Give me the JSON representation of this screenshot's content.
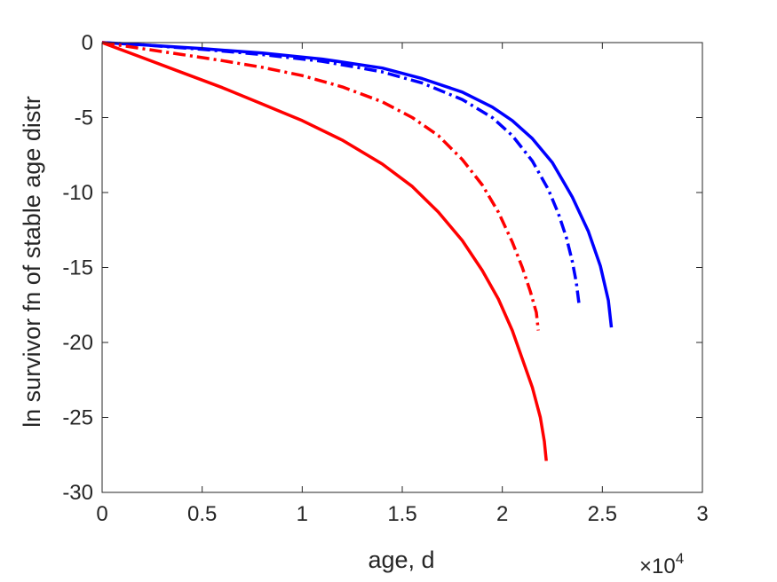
{
  "chart_data": {
    "type": "line",
    "title": "",
    "xlabel": "age, d",
    "ylabel": "ln survivor fn of stable age distr",
    "xlim": [
      0,
      30000
    ],
    "ylim": [
      -30,
      0
    ],
    "x_multiplier": "×10",
    "x_multiplier_exponent": "4",
    "x_ticks": [
      0,
      5000,
      10000,
      15000,
      20000,
      25000,
      30000
    ],
    "x_tick_labels": [
      "0",
      "0.5",
      "1",
      "1.5",
      "2",
      "2.5",
      "3"
    ],
    "y_ticks": [
      0,
      -5,
      -10,
      -15,
      -20,
      -25,
      -30
    ],
    "y_tick_labels": [
      "0",
      "-5",
      "-10",
      "-15",
      "-20",
      "-25",
      "-30"
    ],
    "grid": false,
    "legend": "none",
    "series": [
      {
        "color": "#0000ff",
        "linestyle": "solid",
        "x": [
          0,
          2000,
          5000,
          8000,
          11000,
          14000,
          16000,
          18000,
          19500,
          20500,
          21500,
          22500,
          23500,
          24300,
          24900,
          25300,
          25450
        ],
        "y": [
          0,
          -0.15,
          -0.4,
          -0.7,
          -1.1,
          -1.7,
          -2.4,
          -3.3,
          -4.3,
          -5.2,
          -6.4,
          -8.0,
          -10.3,
          -12.6,
          -14.9,
          -17.2,
          -19.0
        ]
      },
      {
        "color": "#0000ff",
        "linestyle": "dashdot",
        "x": [
          0,
          2000,
          5000,
          8000,
          11000,
          14000,
          16000,
          18000,
          19500,
          20500,
          21500,
          22300,
          22800,
          23200,
          23500,
          23700,
          23850
        ],
        "y": [
          0,
          -0.15,
          -0.45,
          -0.8,
          -1.25,
          -1.95,
          -2.7,
          -3.8,
          -5.0,
          -6.2,
          -7.9,
          -9.8,
          -11.4,
          -13.0,
          -14.6,
          -16.0,
          -17.6
        ]
      },
      {
        "color": "#ff0000",
        "linestyle": "dashdot",
        "x": [
          0,
          2000,
          4000,
          6000,
          8000,
          10000,
          12000,
          14000,
          15500,
          16800,
          18000,
          19000,
          19800,
          20500,
          21000,
          21400,
          21700,
          21800
        ],
        "y": [
          0,
          -0.4,
          -0.8,
          -1.2,
          -1.65,
          -2.2,
          -2.95,
          -3.95,
          -5.0,
          -6.2,
          -7.8,
          -9.5,
          -11.3,
          -13.3,
          -15.0,
          -16.6,
          -18.0,
          -19.2
        ]
      },
      {
        "color": "#ff0000",
        "linestyle": "solid",
        "x": [
          0,
          2000,
          4000,
          6000,
          8000,
          10000,
          12000,
          14000,
          15500,
          16800,
          18000,
          19000,
          19800,
          20500,
          21000,
          21500,
          21900,
          22100,
          22200
        ],
        "y": [
          0,
          -1.0,
          -2.0,
          -3.0,
          -4.1,
          -5.2,
          -6.5,
          -8.1,
          -9.6,
          -11.3,
          -13.2,
          -15.2,
          -17.1,
          -19.2,
          -21.1,
          -23.0,
          -25.0,
          -26.6,
          -27.9
        ]
      }
    ]
  }
}
